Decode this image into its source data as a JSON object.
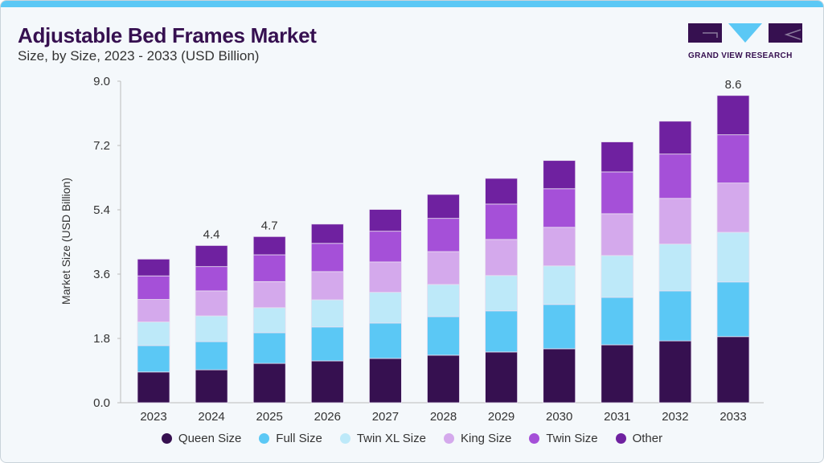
{
  "header": {
    "title": "Adjustable Bed Frames Market",
    "subtitle": "Size, by Size, 2023 - 2033 (USD Billion)",
    "logo_text": "GRAND VIEW RESEARCH"
  },
  "chart_data": {
    "type": "bar",
    "stacked": true,
    "title": "Adjustable Bed Frames Market",
    "subtitle": "Size, by Size, 2023 - 2033 (USD Billion)",
    "xlabel": "",
    "ylabel": "Market Size (USD Billion)",
    "ylim": [
      0,
      9.0
    ],
    "yticks": [
      "0.0",
      "1.8",
      "3.6",
      "5.4",
      "7.2",
      "9.0"
    ],
    "ytick_values": [
      0,
      1.8,
      3.6,
      5.4,
      7.2,
      9.0
    ],
    "categories": [
      "2023",
      "2024",
      "2025",
      "2026",
      "2027",
      "2028",
      "2029",
      "2030",
      "2031",
      "2032",
      "2033"
    ],
    "series": [
      {
        "name": "Queen Size",
        "color": "#361050",
        "values": [
          0.86,
          0.92,
          1.1,
          1.17,
          1.24,
          1.33,
          1.42,
          1.51,
          1.62,
          1.73,
          1.85
        ]
      },
      {
        "name": "Full Size",
        "color": "#5bc8f5",
        "values": [
          0.74,
          0.79,
          0.86,
          0.95,
          0.99,
          1.08,
          1.15,
          1.24,
          1.33,
          1.4,
          1.53
        ]
      },
      {
        "name": "Twin XL Size",
        "color": "#bde9f9",
        "values": [
          0.66,
          0.72,
          0.7,
          0.76,
          0.86,
          0.9,
          0.99,
          1.08,
          1.17,
          1.31,
          1.39
        ]
      },
      {
        "name": "King Size",
        "color": "#d4a9ec",
        "values": [
          0.63,
          0.7,
          0.73,
          0.79,
          0.85,
          0.92,
          1.01,
          1.08,
          1.17,
          1.28,
          1.38
        ]
      },
      {
        "name": "Twin Size",
        "color": "#a550d8",
        "values": [
          0.66,
          0.68,
          0.75,
          0.79,
          0.86,
          0.93,
          0.99,
          1.08,
          1.17,
          1.24,
          1.35
        ]
      },
      {
        "name": "Other",
        "color": "#6f21a0",
        "values": [
          0.47,
          0.59,
          0.51,
          0.54,
          0.61,
          0.67,
          0.72,
          0.79,
          0.84,
          0.92,
          1.1
        ]
      }
    ],
    "annotations": [
      {
        "category": "2024",
        "text": "4.4"
      },
      {
        "category": "2025",
        "text": "4.7"
      },
      {
        "category": "2033",
        "text": "8.6"
      }
    ],
    "legend_position": "bottom",
    "grid": false
  }
}
